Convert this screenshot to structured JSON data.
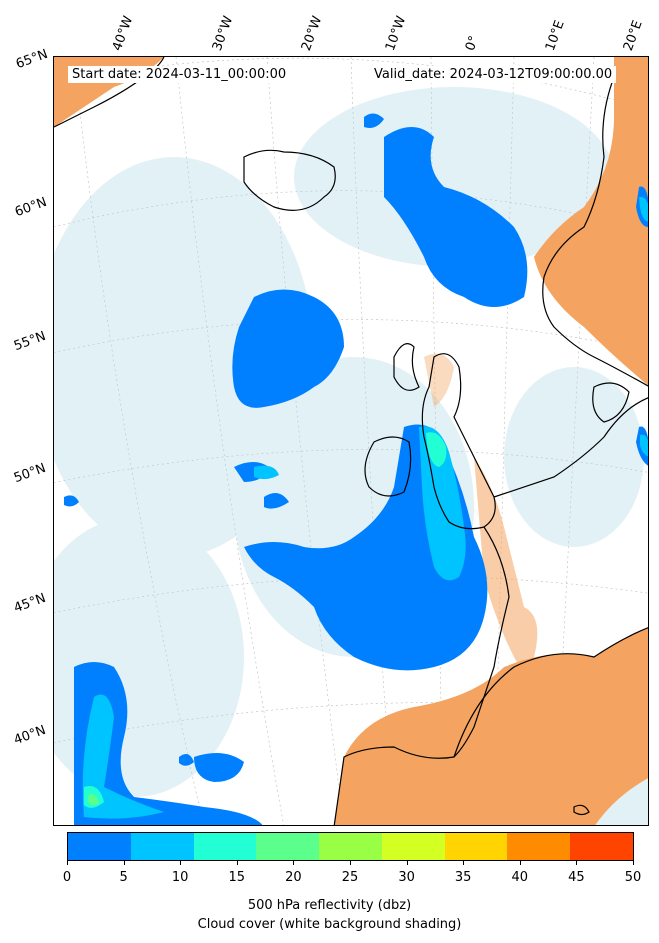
{
  "map": {
    "start_date": "Start date: 2024-03-11_00:00:00",
    "valid_date": "Valid_date: 2024-03-12T09:00:00.00",
    "lon_labels": [
      "40°W",
      "30°W",
      "20°W",
      "10°W",
      "0°",
      "10°E",
      "20°E"
    ],
    "lat_labels": [
      "65°N",
      "60°N",
      "55°N",
      "50°N",
      "45°N",
      "40°N"
    ]
  },
  "colorbar": {
    "ticks": [
      "0",
      "5",
      "10",
      "15",
      "20",
      "25",
      "30",
      "35",
      "40",
      "45",
      "50"
    ],
    "colors": [
      "#0080ff",
      "#00c4ff",
      "#22ffd4",
      "#5aff8c",
      "#99ff44",
      "#d4ff22",
      "#ffd400",
      "#ff8c00",
      "#ff4400"
    ],
    "label": "500 hPa reflectivity (dbz)",
    "sublabel": "Cloud cover (white background shading)"
  },
  "colors": {
    "land_clear": "#f4a460",
    "cloud_shade": "#add8e6",
    "coastline": "#000000"
  }
}
